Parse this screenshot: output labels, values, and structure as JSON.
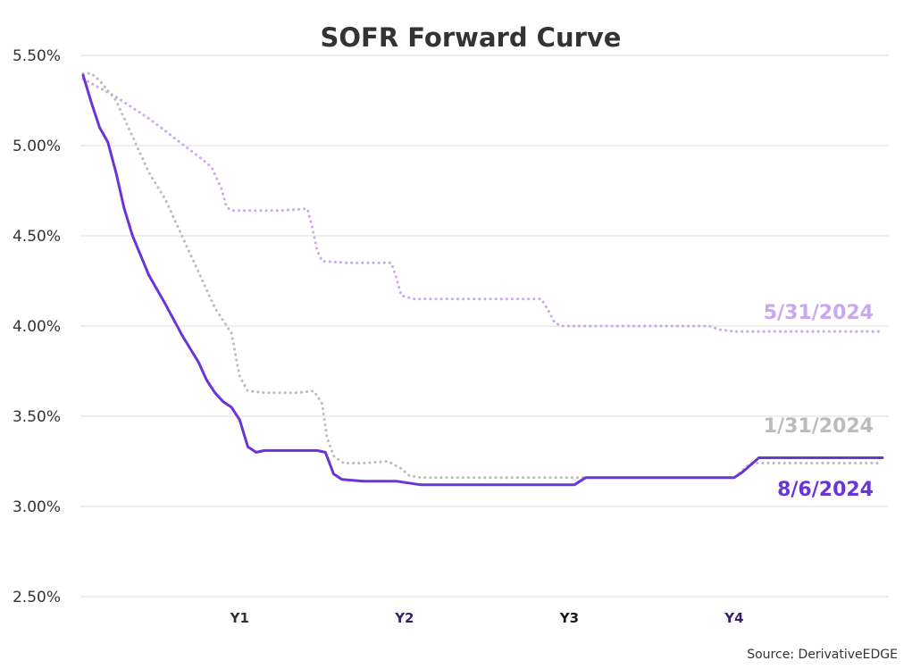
{
  "chart_data": {
    "type": "line",
    "title": "SOFR Forward Curve",
    "source": "Source: DerivativeEDGE",
    "xlabel": "",
    "ylabel": "",
    "x_range": [
      0,
      4.85
    ],
    "ylim": [
      2.5,
      5.5
    ],
    "y_ticks": [
      "5.50%",
      "5.00%",
      "4.50%",
      "4.00%",
      "3.50%",
      "3.00%",
      "2.50%"
    ],
    "y_tick_values": [
      5.5,
      5.0,
      4.5,
      4.0,
      3.5,
      3.0,
      2.5
    ],
    "x_ticks": [
      {
        "label": "Y1",
        "value": 0.95,
        "color": "#333333"
      },
      {
        "label": "Y2",
        "value": 1.95,
        "color": "#3a1f66"
      },
      {
        "label": "Y3",
        "value": 2.95,
        "color": "#1a1a1a"
      },
      {
        "label": "Y4",
        "value": 3.95,
        "color": "#3a1f66"
      }
    ],
    "grid": true,
    "series": [
      {
        "name": "5/31/2024",
        "color": "#c9a8f0",
        "style": "dotted",
        "label_value": 4.04,
        "x": [
          0,
          0.1,
          0.2,
          0.3,
          0.4,
          0.5,
          0.6,
          0.7,
          0.78,
          0.84,
          0.87,
          0.9,
          1.0,
          1.2,
          1.36,
          1.39,
          1.42,
          1.45,
          1.6,
          1.8,
          1.87,
          1.9,
          1.93,
          2.0,
          2.3,
          2.6,
          2.78,
          2.82,
          2.86,
          2.9,
          3.2,
          3.5,
          3.8,
          3.86,
          3.95,
          4.2,
          4.5,
          4.85
        ],
        "values": [
          5.37,
          5.32,
          5.27,
          5.21,
          5.15,
          5.08,
          5.01,
          4.94,
          4.88,
          4.76,
          4.66,
          4.64,
          4.64,
          4.64,
          4.65,
          4.55,
          4.42,
          4.36,
          4.35,
          4.35,
          4.35,
          4.27,
          4.17,
          4.15,
          4.15,
          4.15,
          4.15,
          4.09,
          4.02,
          4.0,
          4.0,
          4.0,
          4.0,
          3.98,
          3.97,
          3.97,
          3.97,
          3.97
        ]
      },
      {
        "name": "1/31/2024",
        "color": "#bbbbbb",
        "style": "dotted",
        "label_value": 3.41,
        "x": [
          0,
          0.05,
          0.1,
          0.2,
          0.3,
          0.4,
          0.5,
          0.6,
          0.7,
          0.8,
          0.9,
          0.95,
          1.0,
          1.1,
          1.3,
          1.4,
          1.45,
          1.48,
          1.52,
          1.58,
          1.7,
          1.85,
          1.93,
          1.98,
          2.05,
          2.4,
          2.8,
          3.2,
          3.6,
          3.95,
          4.05,
          4.85
        ],
        "values": [
          5.4,
          5.4,
          5.36,
          5.25,
          5.05,
          4.85,
          4.7,
          4.5,
          4.3,
          4.1,
          3.96,
          3.72,
          3.64,
          3.63,
          3.63,
          3.64,
          3.57,
          3.38,
          3.28,
          3.24,
          3.24,
          3.25,
          3.21,
          3.17,
          3.16,
          3.16,
          3.16,
          3.16,
          3.16,
          3.16,
          3.24,
          3.24
        ]
      },
      {
        "name": "8/6/2024",
        "color": "#6a35d8",
        "style": "solid",
        "label_value": 3.06,
        "x": [
          0,
          0.05,
          0.1,
          0.15,
          0.2,
          0.25,
          0.3,
          0.4,
          0.5,
          0.6,
          0.7,
          0.75,
          0.8,
          0.85,
          0.9,
          0.95,
          1.0,
          1.05,
          1.1,
          1.3,
          1.42,
          1.47,
          1.52,
          1.57,
          1.7,
          1.9,
          2.05,
          2.4,
          2.8,
          2.98,
          3.05,
          3.4,
          3.8,
          3.95,
          4.0,
          4.1,
          4.5,
          4.85
        ],
        "values": [
          5.39,
          5.24,
          5.1,
          5.02,
          4.85,
          4.65,
          4.5,
          4.28,
          4.12,
          3.95,
          3.8,
          3.7,
          3.63,
          3.58,
          3.55,
          3.48,
          3.33,
          3.3,
          3.31,
          3.31,
          3.31,
          3.3,
          3.18,
          3.15,
          3.14,
          3.14,
          3.12,
          3.12,
          3.12,
          3.12,
          3.16,
          3.16,
          3.16,
          3.16,
          3.19,
          3.27,
          3.27,
          3.27
        ]
      }
    ]
  }
}
